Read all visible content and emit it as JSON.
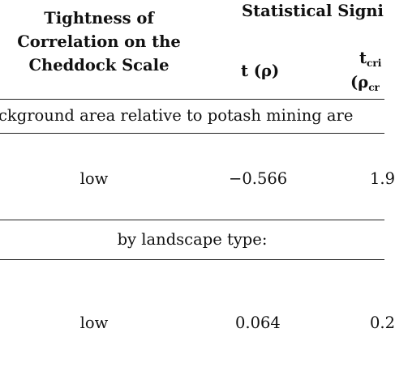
{
  "header": {
    "col1_line1": "Tightness of",
    "col1_line2": "Correlation on the",
    "col1_line3": "Cheddock Scale",
    "group_title": "Statistical Signi",
    "t_col": "t (ρ)",
    "tcrit_base": "t",
    "tcrit_sub": "cri",
    "rhocrit_base": "(ρ",
    "rhocrit_sub": "cr"
  },
  "sections": [
    {
      "title": "ckground area relative to potash mining are",
      "row": {
        "tightness": "low",
        "t_value": "−0.566",
        "tcrit_value": "1.9"
      }
    },
    {
      "title": "by landscape type:",
      "row": {
        "tightness": "low",
        "t_value": "0.064",
        "tcrit_value": "0.2"
      }
    }
  ]
}
